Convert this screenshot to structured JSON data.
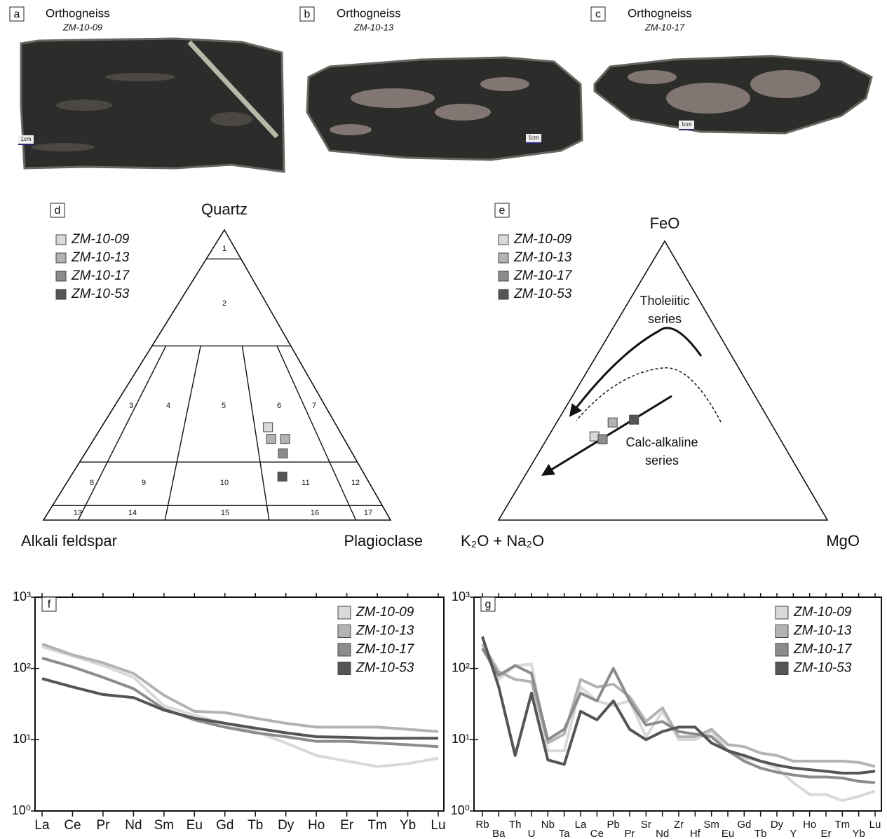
{
  "photos": [
    {
      "label": "a",
      "title": "Orthogneiss",
      "sample": "ZM-10-09",
      "scale": "1cm"
    },
    {
      "label": "b",
      "title": "Orthogneiss",
      "sample": "ZM-10-13",
      "scale": "1cm"
    },
    {
      "label": "c",
      "title": "Orthogneiss",
      "sample": "ZM-10-17",
      "scale": "1cm"
    }
  ],
  "chart_data": [
    {
      "type": "ternary",
      "panel_label": "d",
      "apex_labels": {
        "top": "Quartz",
        "left": "Alkali feldspar",
        "right": "Plagioclase"
      },
      "field_labels": [
        "1",
        "2",
        "3",
        "4",
        "5",
        "6",
        "7",
        "8",
        "9",
        "10",
        "11",
        "12",
        "13",
        "14",
        "15",
        "16",
        "17"
      ],
      "series": [
        {
          "name": "ZM-10-09",
          "color": "#d9d9d9",
          "values": [
            [
              32,
              20,
              48
            ]
          ]
        },
        {
          "name": "ZM-10-13",
          "color": "#b3b3b3",
          "values": [
            [
              28,
              21,
              51
            ],
            [
              28,
              17,
              55
            ]
          ]
        },
        {
          "name": "ZM-10-17",
          "color": "#8c8c8c",
          "values": [
            [
              23,
              20,
              57
            ]
          ]
        },
        {
          "name": "ZM-10-53",
          "color": "#555555",
          "values": [
            [
              15,
              24,
              61
            ]
          ]
        }
      ]
    },
    {
      "type": "ternary",
      "panel_label": "e",
      "apex_labels": {
        "top": "FeO",
        "left": "K₂O + Na₂O",
        "right": "MgO"
      },
      "annotations": [
        [
          "Tholeiitic",
          "series"
        ],
        [
          "Calc-alkaline",
          "series"
        ]
      ],
      "series": [
        {
          "name": "ZM-10-09",
          "color": "#d9d9d9",
          "values": [
            [
              30,
              56,
              14
            ]
          ]
        },
        {
          "name": "ZM-10-13",
          "color": "#b3b3b3",
          "values": [
            [
              35,
              48,
              17
            ]
          ]
        },
        {
          "name": "ZM-10-17",
          "color": "#8c8c8c",
          "values": [
            [
              29,
              54,
              17
            ]
          ]
        },
        {
          "name": "ZM-10-53",
          "color": "#555555",
          "values": [
            [
              36,
              41,
              23
            ]
          ]
        }
      ]
    },
    {
      "type": "line",
      "panel_label": "f",
      "log_y": true,
      "categories": [
        "La",
        "Ce",
        "Pr",
        "Nd",
        "Sm",
        "Eu",
        "Gd",
        "Tb",
        "Dy",
        "Ho",
        "Er",
        "Tm",
        "Yb",
        "Lu"
      ],
      "ylim": [
        1,
        1000
      ],
      "yticks": [
        {
          "value": 1,
          "label": "10⁰"
        },
        {
          "value": 10,
          "label": "10¹"
        },
        {
          "value": 100,
          "label": "10²"
        },
        {
          "value": 1000,
          "label": "10³"
        }
      ],
      "series": [
        {
          "name": "ZM-10-09",
          "color": "#d9d9d9",
          "values": [
            200,
            150,
            110,
            75,
            30,
            22,
            17,
            13,
            9,
            6,
            5,
            4.2,
            4.6,
            5.5
          ]
        },
        {
          "name": "ZM-10-13",
          "color": "#b3b3b3",
          "values": [
            220,
            155,
            120,
            85,
            42,
            25,
            24,
            20,
            17,
            15,
            15,
            15,
            14,
            13
          ]
        },
        {
          "name": "ZM-10-17",
          "color": "#8c8c8c",
          "values": [
            140,
            105,
            75,
            52,
            27,
            19,
            15,
            12.5,
            11,
            9.5,
            9.5,
            9,
            8.5,
            8
          ]
        },
        {
          "name": "ZM-10-53",
          "color": "#555555",
          "values": [
            72,
            55,
            43,
            39,
            26,
            20,
            17,
            14.5,
            12.5,
            11,
            10.8,
            10.5,
            10.5,
            10.5
          ]
        }
      ]
    },
    {
      "type": "line",
      "panel_label": "g",
      "log_y": true,
      "categories": [
        "Rb",
        "Ba",
        "Th",
        "U",
        "Nb",
        "Ta",
        "La",
        "Ce",
        "Pb",
        "Pr",
        "Sr",
        "Nd",
        "Zr",
        "Hf",
        "Sm",
        "Eu",
        "Gd",
        "Tb",
        "Dy",
        "Y",
        "Ho",
        "Er",
        "Tm",
        "Yb",
        "Lu"
      ],
      "ylim": [
        1,
        1000
      ],
      "yticks": [
        {
          "value": 1,
          "label": "10⁰"
        },
        {
          "value": 10,
          "label": "10¹"
        },
        {
          "value": 100,
          "label": "10²"
        },
        {
          "value": 1000,
          "label": "10³"
        }
      ],
      "series": [
        {
          "name": "ZM-10-09",
          "color": "#d9d9d9",
          "values": [
            200,
            70,
            110,
            115,
            7,
            7,
            55,
            35,
            30,
            35,
            11,
            25,
            10,
            10,
            13,
            7,
            5.5,
            5,
            4,
            2.5,
            1.7,
            1.7,
            1.4,
            1.6,
            1.9
          ]
        },
        {
          "name": "ZM-10-13",
          "color": "#b3b3b3",
          "values": [
            220,
            90,
            70,
            65,
            9,
            12,
            70,
            55,
            60,
            40,
            18,
            28,
            11,
            11,
            14,
            8.5,
            8,
            6.5,
            6,
            5,
            5,
            5,
            5,
            4.8,
            4.2
          ]
        },
        {
          "name": "ZM-10-17",
          "color": "#8c8c8c",
          "values": [
            190,
            80,
            110,
            85,
            10,
            14,
            45,
            35,
            100,
            35,
            16,
            18,
            13,
            12,
            11,
            7,
            5,
            4,
            3.5,
            3.2,
            3,
            3,
            2.9,
            2.6,
            2.5
          ]
        },
        {
          "name": "ZM-10-53",
          "color": "#555555",
          "values": [
            280,
            55,
            6,
            45,
            5.2,
            4.5,
            25,
            19,
            35,
            14,
            10,
            13,
            15,
            15,
            9,
            7,
            6,
            5,
            4.4,
            4,
            3.8,
            3.6,
            3.4,
            3.4,
            3.6
          ]
        }
      ]
    }
  ]
}
